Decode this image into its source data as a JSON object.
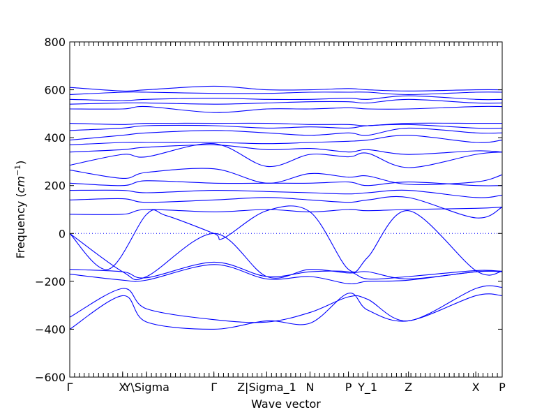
{
  "chart_data": {
    "type": "line",
    "xlabel": "Wave vector",
    "ylabel_main": "Frequency (",
    "ylabel_unit": "cm",
    "ylabel_exp": "−1",
    "ylabel_close": ")",
    "ylim": [
      -600,
      800
    ],
    "yticks": [
      -600,
      -400,
      -200,
      0,
      200,
      400,
      600,
      800
    ],
    "xlim": [
      0,
      9
    ],
    "xticks": [
      {
        "x": 0.0,
        "label": "Γ"
      },
      {
        "x": 1.1,
        "label": "X"
      },
      {
        "x": 1.6,
        "label": "Y\\Sigma"
      },
      {
        "x": 3.0,
        "label": "Γ"
      },
      {
        "x": 4.1,
        "label": "Z|Sigma_1"
      },
      {
        "x": 5.0,
        "label": "N"
      },
      {
        "x": 5.8,
        "label": "P"
      },
      {
        "x": 6.2,
        "label": "Y_1"
      },
      {
        "x": 7.05,
        "label": "Z"
      },
      {
        "x": 8.45,
        "label": "X"
      },
      {
        "x": 9.0,
        "label": "P"
      }
    ],
    "minor_tick_step": 0.1,
    "zero_line": true,
    "series_color": "#0000ff",
    "series": [
      {
        "x": [
          0,
          1.1,
          1.6,
          3,
          4.1,
          5,
          5.8,
          6.2,
          7.05,
          8.45,
          9
        ],
        "values": [
          -400,
          -260,
          -370,
          -400,
          -365,
          -375,
          -250,
          -320,
          -365,
          -260,
          -260
        ]
      },
      {
        "x": [
          0,
          1.1,
          1.6,
          3,
          4.1,
          5,
          5.8,
          6.2,
          7.05,
          8.45,
          9
        ],
        "values": [
          -350,
          -230,
          -315,
          -360,
          -370,
          -330,
          -265,
          -275,
          -365,
          -230,
          -225
        ]
      },
      {
        "x": [
          0,
          1.1,
          1.6,
          3,
          4.1,
          5,
          5.8,
          6.2,
          7.05,
          8.45,
          9
        ],
        "values": [
          -170,
          -195,
          -195,
          -130,
          -190,
          -180,
          -210,
          -200,
          -195,
          -160,
          -160
        ]
      },
      {
        "x": [
          0,
          1.1,
          1.6,
          3,
          4.1,
          5,
          5.8,
          6.2,
          7.05,
          8.45,
          9
        ],
        "values": [
          -150,
          -160,
          -185,
          -120,
          -180,
          -160,
          -160,
          -190,
          -180,
          -155,
          -158
        ]
      },
      {
        "x": [
          0,
          1.1,
          1.6,
          3,
          4.1,
          5,
          5.8,
          6.2,
          7.05,
          8.45,
          9
        ],
        "values": [
          0,
          -160,
          -180,
          0,
          -180,
          -150,
          -165,
          -160,
          -190,
          -160,
          -158
        ]
      },
      {
        "x": [
          0,
          0.8,
          1.6,
          2.0,
          3,
          3.2,
          4.1,
          5,
          5.8,
          6.2,
          7.05,
          8.45,
          9
        ],
        "values": [
          0,
          -150,
          80,
          75,
          0,
          -20,
          95,
          90,
          -150,
          -100,
          95,
          -155,
          -158
        ]
      },
      {
        "x": [
          0,
          1.1,
          1.6,
          3,
          4.1,
          5,
          5.8,
          6.2,
          7.05,
          8.45,
          9
        ],
        "values": [
          80,
          80,
          100,
          90,
          100,
          90,
          100,
          95,
          100,
          105,
          110
        ]
      },
      {
        "x": [
          0,
          1.1,
          1.6,
          3,
          4.1,
          5,
          5.8,
          6.2,
          7.05,
          8.45,
          9
        ],
        "values": [
          140,
          145,
          130,
          140,
          150,
          140,
          130,
          140,
          150,
          65,
          110
        ]
      },
      {
        "x": [
          0,
          1.1,
          1.6,
          3,
          4.1,
          5,
          5.8,
          6.2,
          7.05,
          8.45,
          9
        ],
        "values": [
          180,
          180,
          170,
          180,
          175,
          170,
          165,
          170,
          180,
          150,
          160
        ]
      },
      {
        "x": [
          0,
          1.1,
          1.6,
          3,
          4.1,
          5,
          5.8,
          6.2,
          7.05,
          8.45,
          9
        ],
        "values": [
          210,
          200,
          220,
          210,
          210,
          210,
          215,
          200,
          215,
          200,
          200
        ]
      },
      {
        "x": [
          0,
          1.1,
          1.6,
          3,
          4.1,
          5,
          5.8,
          6.2,
          7.05,
          8.45,
          9
        ],
        "values": [
          265,
          230,
          255,
          270,
          210,
          250,
          235,
          240,
          205,
          215,
          245
        ]
      },
      {
        "x": [
          0,
          1.1,
          1.6,
          3,
          4.1,
          5,
          5.8,
          6.2,
          7.05,
          8.45,
          9
        ],
        "values": [
          285,
          330,
          320,
          375,
          280,
          330,
          320,
          335,
          275,
          330,
          340
        ]
      },
      {
        "x": [
          0,
          1.1,
          1.6,
          3,
          4.1,
          5,
          5.8,
          6.2,
          7.05,
          8.45,
          9
        ],
        "values": [
          340,
          350,
          360,
          370,
          350,
          355,
          340,
          350,
          330,
          345,
          340
        ]
      },
      {
        "x": [
          0,
          1.1,
          1.6,
          3,
          4.1,
          5,
          5.8,
          6.2,
          7.05,
          8.45,
          9
        ],
        "values": [
          370,
          380,
          380,
          380,
          375,
          380,
          385,
          390,
          410,
          380,
          390
        ]
      },
      {
        "x": [
          0,
          1.1,
          1.6,
          3,
          4.1,
          5,
          5.8,
          6.2,
          7.05,
          8.45,
          9
        ],
        "values": [
          390,
          410,
          420,
          430,
          420,
          410,
          420,
          410,
          440,
          420,
          420
        ]
      },
      {
        "x": [
          0,
          1.1,
          1.6,
          3,
          4.1,
          5,
          5.8,
          6.2,
          7.05,
          8.45,
          9
        ],
        "values": [
          430,
          440,
          450,
          450,
          440,
          445,
          440,
          450,
          455,
          440,
          440
        ]
      },
      {
        "x": [
          0,
          1.1,
          1.6,
          3,
          4.1,
          5,
          5.8,
          6.2,
          7.05,
          8.45,
          9
        ],
        "values": [
          460,
          455,
          460,
          460,
          460,
          455,
          455,
          450,
          460,
          460,
          460
        ]
      },
      {
        "x": [
          0,
          1.1,
          1.6,
          3,
          4.1,
          5,
          5.8,
          6.2,
          7.05,
          8.45,
          9
        ],
        "values": [
          520,
          520,
          530,
          505,
          520,
          520,
          525,
          520,
          520,
          530,
          530
        ]
      },
      {
        "x": [
          0,
          1.1,
          1.6,
          3,
          4.1,
          5,
          5.8,
          6.2,
          7.05,
          8.45,
          9
        ],
        "values": [
          540,
          545,
          545,
          540,
          545,
          550,
          550,
          545,
          560,
          545,
          545
        ]
      },
      {
        "x": [
          0,
          1.1,
          1.6,
          3,
          4.1,
          5,
          5.8,
          6.2,
          7.05,
          8.45,
          9
        ],
        "values": [
          560,
          555,
          560,
          565,
          560,
          560,
          565,
          560,
          575,
          560,
          560
        ]
      },
      {
        "x": [
          0,
          1.1,
          1.6,
          3,
          4.1,
          5,
          5.8,
          6.2,
          7.05,
          8.45,
          9
        ],
        "values": [
          580,
          590,
          590,
          585,
          585,
          590,
          590,
          590,
          580,
          590,
          590
        ]
      },
      {
        "x": [
          0,
          1.1,
          1.6,
          3,
          4.1,
          5,
          5.8,
          6.2,
          7.05,
          8.45,
          9
        ],
        "values": [
          610,
          595,
          600,
          615,
          600,
          600,
          605,
          600,
          595,
          600,
          600
        ]
      }
    ]
  }
}
